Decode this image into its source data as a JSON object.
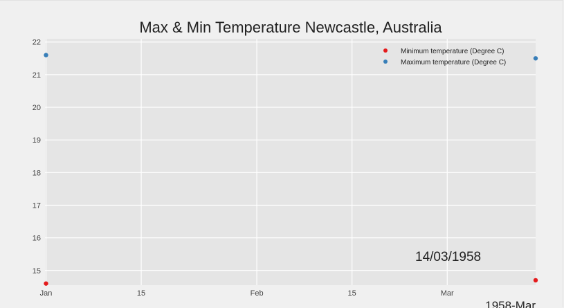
{
  "chart_data": {
    "type": "scatter",
    "title": "Max & Min Temperature Newcastle, Australia",
    "x_range": [
      "1958-01-01",
      "1958-03-14"
    ],
    "ylim": [
      14.55,
      22.1
    ],
    "yticks": [
      15,
      16,
      17,
      18,
      19,
      20,
      21,
      22
    ],
    "xticks": [
      {
        "date": "1958-01-01",
        "label": "Jan"
      },
      {
        "date": "1958-01-15",
        "label": "15"
      },
      {
        "date": "1958-02-01",
        "label": "Feb"
      },
      {
        "date": "1958-02-15",
        "label": "15"
      },
      {
        "date": "1958-03-01",
        "label": "Mar"
      }
    ],
    "x_offset_label": "1958-Mar",
    "grid": true,
    "legend_position": "top-right",
    "series": [
      {
        "name": "Minimum temperature (Degree C)",
        "color": "#e41a1c",
        "points": [
          {
            "x": "1958-01-01",
            "y": 14.6
          },
          {
            "x": "1958-03-14",
            "y": 14.7
          }
        ]
      },
      {
        "name": "Maximum temperature (Degree C)",
        "color": "#377eb8",
        "points": [
          {
            "x": "1958-01-01",
            "y": 21.6
          },
          {
            "x": "1958-03-14",
            "y": 21.5
          }
        ]
      }
    ],
    "annotation": "14/03/1958"
  }
}
